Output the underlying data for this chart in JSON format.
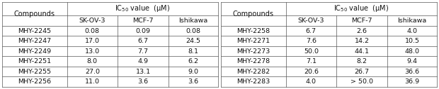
{
  "left_table": {
    "col_headers": [
      "Compounds",
      "SK-OV-3",
      "MCF-7",
      "Ishikawa"
    ],
    "group_header": "IC$_{50}$ value  (μM)",
    "rows": [
      [
        "MHY-2245",
        "0.08",
        "0.09",
        "0.08"
      ],
      [
        "MHY-2247",
        "17.0",
        "6.7",
        "24.5"
      ],
      [
        "MHY-2249",
        "13.0",
        "7.7",
        "8.1"
      ],
      [
        "MHY-2251",
        "8.0",
        "4.9",
        "6.2"
      ],
      [
        "MHY-2255",
        "27.0",
        "13.1",
        "9.0"
      ],
      [
        "MHY-2256",
        "11.0",
        "3.6",
        "3.6"
      ]
    ]
  },
  "right_table": {
    "col_headers": [
      "Compounds",
      "SK-OV-3",
      "MCF-7",
      "Ishikawa"
    ],
    "group_header": "IC$_{50}$ value  (μM)",
    "rows": [
      [
        "MHY-2258",
        "6.7",
        "2.6",
        "4.0"
      ],
      [
        "MHY-2271",
        "7.6",
        "14.2",
        "10.5"
      ],
      [
        "MHY-2273",
        "50.0",
        "44.1",
        "48.0"
      ],
      [
        "MHY-2278",
        "7.1",
        "8.2",
        "9.4"
      ],
      [
        "MHY-2282",
        "20.6",
        "26.7",
        "36.6"
      ],
      [
        "MHY-2283",
        "4.0",
        "> 50.0",
        "36.9"
      ]
    ]
  },
  "line_color": "#555555",
  "text_color": "#111111",
  "font_size": 6.8,
  "header_font_size": 7.0
}
